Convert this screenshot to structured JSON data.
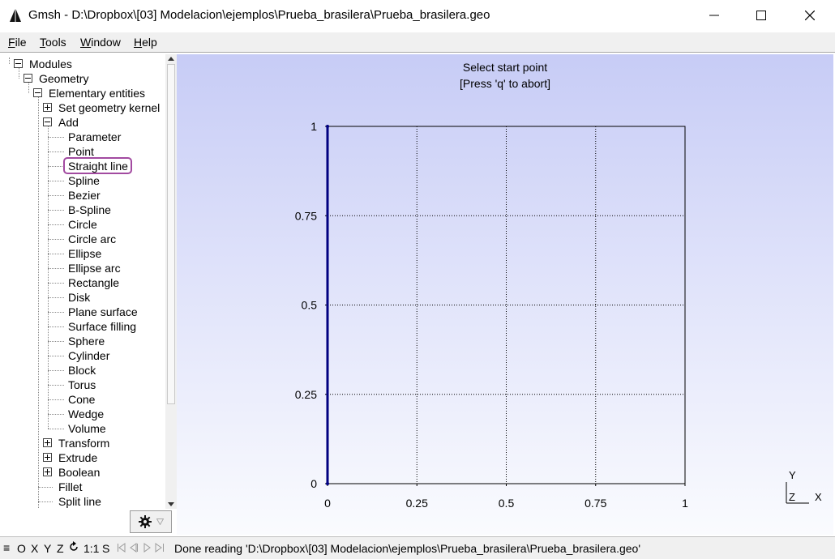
{
  "window": {
    "title": "Gmsh - D:\\Dropbox\\[03] Modelacion\\ejemplos\\Prueba_brasilera\\Prueba_brasilera.geo",
    "app_icon": "gmsh-sail-icon",
    "controls": [
      "minimize-icon",
      "maximize-icon",
      "close-icon"
    ]
  },
  "menu": {
    "file": {
      "u": "F",
      "rest": "ile"
    },
    "tools": {
      "u": "T",
      "rest": "ools"
    },
    "window": {
      "u": "W",
      "rest": "indow"
    },
    "help": {
      "u": "H",
      "rest": "elp"
    }
  },
  "tree": {
    "modules": "Modules",
    "geometry": "Geometry",
    "elementary": "Elementary entities",
    "set_kernel": "Set geometry kernel",
    "add": "Add",
    "add_items": [
      "Parameter",
      "Point",
      "Straight line",
      "Spline",
      "Bezier",
      "B-Spline",
      "Circle",
      "Circle arc",
      "Ellipse",
      "Ellipse arc",
      "Rectangle",
      "Disk",
      "Plane surface",
      "Surface filling",
      "Sphere",
      "Cylinder",
      "Block",
      "Torus",
      "Cone",
      "Wedge",
      "Volume"
    ],
    "transform": "Transform",
    "extrude": "Extrude",
    "boolean": "Boolean",
    "fillet": "Fillet",
    "split_line": "Split line",
    "highlighted_item": "Straight line"
  },
  "graphic": {
    "prompt_line1": "Select start point",
    "prompt_line2": "[Press 'q' to abort]",
    "axes": {
      "x_label": "X",
      "y_label": "Y",
      "z_label": "Z"
    },
    "colors": {
      "frame": "#000000",
      "line": "#000080",
      "bg_top": "#c7ccf6",
      "bg_bottom": "#fafbfe"
    }
  },
  "chart_data": {
    "type": "line",
    "title": "",
    "xlabel": "",
    "ylabel": "",
    "xlim": [
      0,
      1
    ],
    "ylim": [
      0,
      1
    ],
    "x_ticks": [
      "0",
      "0.25",
      "0.5",
      "0.75",
      "1"
    ],
    "y_ticks": [
      "0",
      "0.25",
      "0.5",
      "0.75",
      "1"
    ],
    "grid": true,
    "series": [
      {
        "x": [
          0,
          0
        ],
        "y": [
          0,
          1
        ]
      }
    ]
  },
  "statusbar": {
    "hamburger": "≡",
    "o": "O",
    "x": "X",
    "y": "Y",
    "z": "Z",
    "rotate_icon": "rotate-icon",
    "scale": "1:1",
    "s": "S",
    "nav_icons": [
      "first-icon",
      "previous-icon",
      "next-icon",
      "last-icon"
    ],
    "message": "Done reading 'D:\\Dropbox\\[03] Modelacion\\ejemplos\\Prueba_brasilera\\Prueba_brasilera.geo'"
  }
}
